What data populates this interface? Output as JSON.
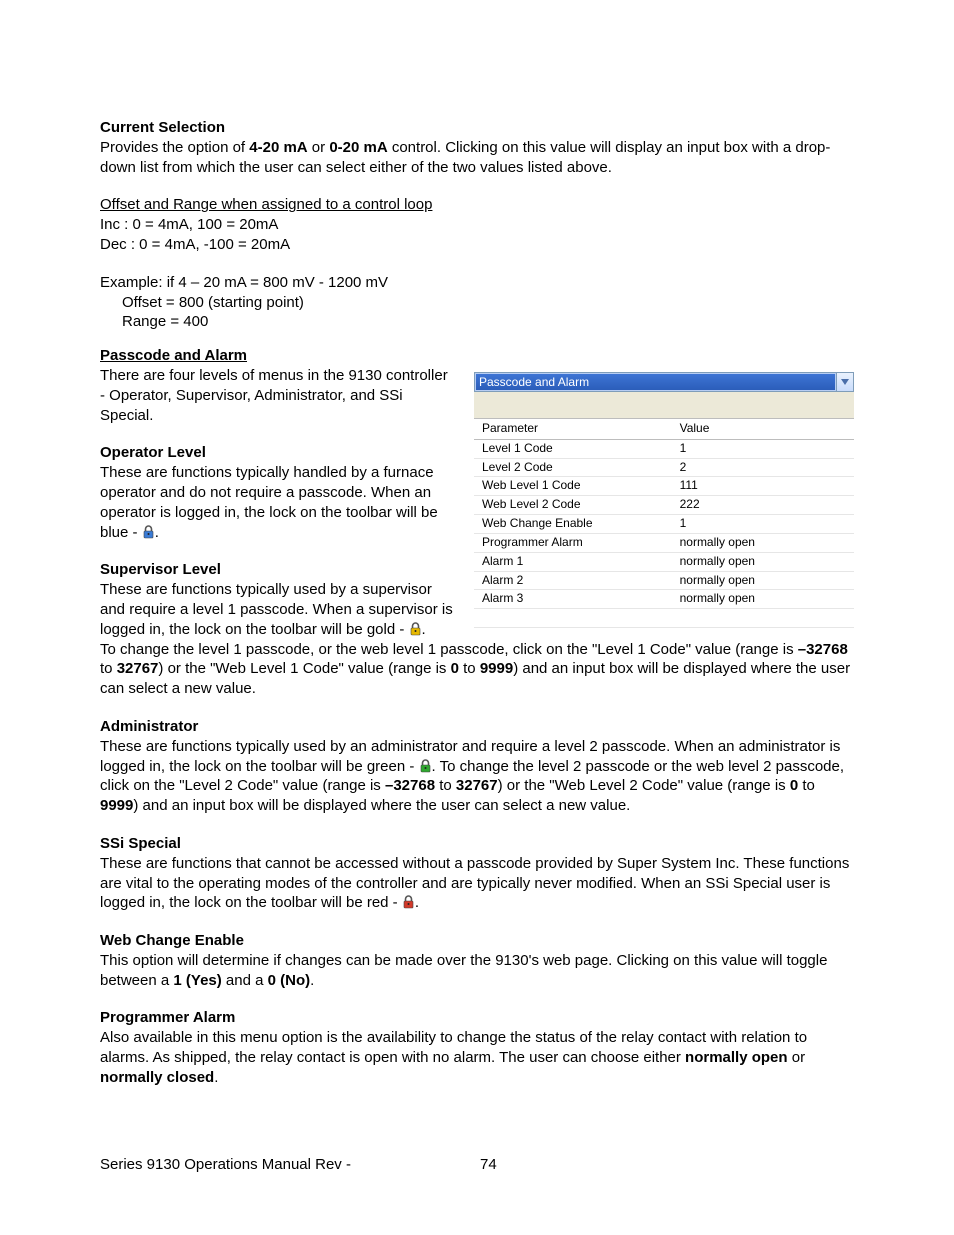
{
  "sec_current_selection": {
    "heading": "Current Selection",
    "p1a": "Provides the option of ",
    "v1": "4-20 mA",
    "p1b": " or ",
    "v2": "0-20 mA",
    "p1c": " control.  Clicking on this value will display an input box with a drop-down list from which the user can select either of the two values listed above.",
    "offset_title": "Offset and Range when assigned to a control loop",
    "inc": "Inc : 0 = 4mA, 100 = 20mA",
    "dec": "Dec : 0 = 4mA, -100 = 20mA",
    "ex1": "Example: if 4 – 20 mA = 800 mV  - 1200 mV",
    "ex2": "Offset  = 800 (starting point)",
    "ex3": "Range = 400"
  },
  "sec_passcode": {
    "heading": "Passcode and Alarm",
    "intro": "There are four levels of menus in the 9130 controller - Operator, Supervisor, Administrator, and SSi Special."
  },
  "panel": {
    "dropdown_label": "Passcode and Alarm",
    "headers": {
      "c1": "Parameter",
      "c2": "Value"
    },
    "rows": [
      {
        "p": "Level 1 Code",
        "v": "1"
      },
      {
        "p": "Level 2 Code",
        "v": "2"
      },
      {
        "p": "Web Level 1 Code",
        "v": "111"
      },
      {
        "p": "Web Level 2 Code",
        "v": "222"
      },
      {
        "p": "Web Change Enable",
        "v": "1"
      },
      {
        "p": "Programmer Alarm",
        "v": "normally open"
      },
      {
        "p": "Alarm 1",
        "v": "normally open"
      },
      {
        "p": "Alarm 2",
        "v": "normally open"
      },
      {
        "p": "Alarm 3",
        "v": "normally open"
      }
    ]
  },
  "operator": {
    "heading": "Operator Level",
    "t1": "These are functions typically handled by a furnace operator and do not require a passcode.  When an operator is logged in, the lock on the toolbar will be blue - ",
    "lock_color": "#3a7bd5",
    "t2": "."
  },
  "supervisor": {
    "heading": "Supervisor Level",
    "t1": "These are functions typically used by a supervisor and require a level 1 passcode.  When a supervisor is logged in, the lock on the toolbar will be gold - ",
    "lock_color": "#e6b800",
    "t2": ".",
    "t3a": "To change the level 1 passcode, or the web level 1 passcode, click on the \"Level 1 Code\" value (range is ",
    "v_min": "–32768",
    "t3b": " to ",
    "v_max": "32767",
    "t3c": ") or the \"Web Level 1 Code\" value (range is ",
    "v_wmin": "0",
    "t3d": " to ",
    "v_wmax": "9999",
    "t3e": ") and an input box will be displayed where the user can select a new value."
  },
  "admin": {
    "heading": "Administrator",
    "t1": "These are functions typically used by an administrator and require a level 2 passcode.  When an administrator is logged in, the lock on the toolbar will be green - ",
    "lock_color": "#2fa82f",
    "t2": ".  To change the level 2 passcode or the web level 2 passcode, click on the \"Level 2 Code\" value (range is ",
    "v_min": "–32768",
    "t2b": " to ",
    "v_max": "32767",
    "t2c": ") or the \"Web Level 2 Code\" value (range is ",
    "v_wmin": "0",
    "t2d": " to ",
    "v_wmax": "9999",
    "t2e": ") and an input box will be displayed where the user can select a new value."
  },
  "ssi": {
    "heading": "SSi Special",
    "t1": "These are functions that cannot be accessed without a passcode provided by Super System Inc. These functions are vital to the operating modes of the controller and are typically never modified.  When an SSi Special user is logged in, the lock on the toolbar will be red - ",
    "lock_color": "#d23a2a",
    "t2": "."
  },
  "webchange": {
    "heading": "Web Change Enable",
    "t1": "This option will determine if changes can be made over the 9130's web page.  Clicking on this value will toggle between a ",
    "v1": "1 (Yes)",
    "t2": " and a ",
    "v2": "0 (No)",
    "t3": "."
  },
  "progalarm": {
    "heading": "Programmer Alarm",
    "t1": "Also available in this menu option is the availability to change the status of the relay contact with relation to alarms. As shipped, the relay contact is open with no alarm.  The user can choose either ",
    "v1": "normally open",
    "t2": " or ",
    "v2": "normally closed",
    "t3": "."
  },
  "footer": {
    "left": "Series 9130 Operations Manual Rev - ",
    "page": "74"
  }
}
